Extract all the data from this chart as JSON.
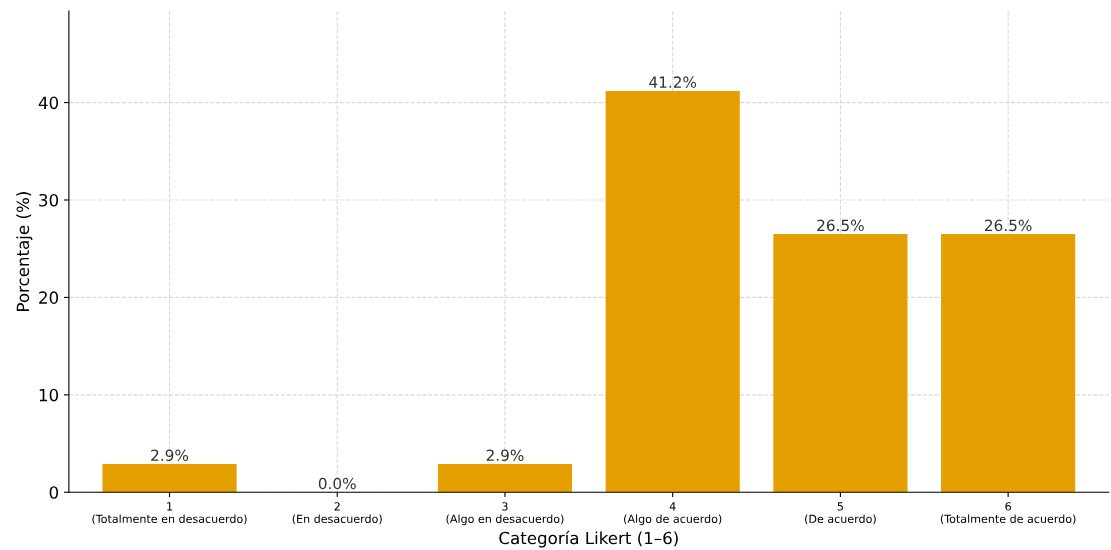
{
  "chart_data": {
    "type": "bar",
    "xlabel": "Categoría Likert (1–6)",
    "ylabel": "Porcentaje (%)",
    "categories": [
      "1\n(Totalmente en desacuerdo)",
      "2\n(En desacuerdo)",
      "3\n(Algo en desacuerdo)",
      "4\n(Algo de acuerdo)",
      "5\n(De acuerdo)",
      "6\n(Totalmente de acuerdo)"
    ],
    "values": [
      2.9,
      0.0,
      2.9,
      41.2,
      26.5,
      26.5
    ],
    "value_labels": [
      "2.9%",
      "0.0%",
      "2.9%",
      "41.2%",
      "26.5%",
      "26.5%"
    ],
    "color": "#e4a000",
    "ylim": [
      0,
      49.4
    ],
    "yticks": [
      0,
      10,
      20,
      30,
      40
    ],
    "grid": true
  }
}
